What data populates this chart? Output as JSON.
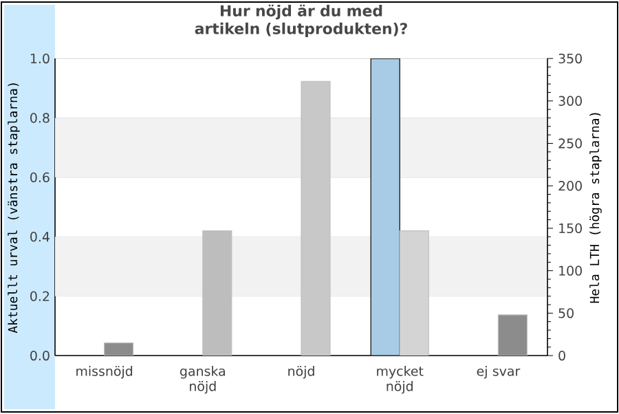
{
  "chart_data": {
    "type": "bar",
    "title": "Hur nöjd är du med artikeln (slutprodukten)?",
    "ylabel": "Aktuellt urval (vänstra staplarna)",
    "y2label": "Hela LTH (högra staplarna)",
    "categories": [
      "missnöjd",
      "ganska nöjd",
      "nöjd",
      "mycket nöjd",
      "ej svar"
    ],
    "series": [
      {
        "color": "#a9cce6",
        "values": [
          0,
          0,
          0,
          1.0,
          0
        ]
      },
      {
        "axis": "y2",
        "colors": [
          "#8c8c8c",
          "#bdbdbd",
          "#c8c8c8",
          "#d4d4d4",
          "#8c8c8c"
        ],
        "values": [
          15,
          147,
          323,
          147,
          48
        ]
      }
    ],
    "ylim": [
      0,
      1
    ],
    "yticks": [
      {
        "value": 0,
        "label": "0.0"
      },
      {
        "value": 0.2,
        "label": "0.2"
      },
      {
        "value": 0.4,
        "label": "0.4"
      },
      {
        "value": 0.6,
        "label": "0.6"
      },
      {
        "value": 0.8,
        "label": "0.8"
      },
      {
        "value": 1,
        "label": "1.0"
      }
    ],
    "y2lim": [
      0,
      350
    ],
    "y2ticks": [
      0,
      50,
      100,
      150,
      200,
      250,
      300,
      350
    ],
    "grid": "y",
    "bands": [
      {
        "axis": "y",
        "from": 0.2,
        "to": 0.4,
        "color": "#f2f2f2"
      },
      {
        "axis": "y",
        "from": 0.6,
        "to": 0.8,
        "color": "#f2f2f2"
      }
    ]
  }
}
